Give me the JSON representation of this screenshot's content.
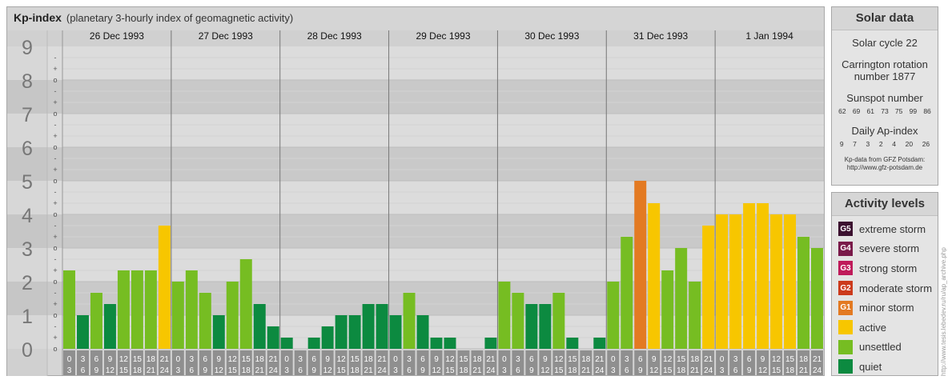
{
  "header": {
    "title": "Kp-index",
    "subtitle": "(planetary 3-hourly index of geomagnetic activity)"
  },
  "chart_data": {
    "type": "bar",
    "title": "Kp-index",
    "subtitle": "(planetary 3-hourly index of geomagnetic activity)",
    "ylim": [
      0,
      9
    ],
    "y_major_labels": [
      "0",
      "1",
      "2",
      "3",
      "4",
      "5",
      "6",
      "7",
      "8",
      "9"
    ],
    "y_minor_labels": [
      "o",
      "+",
      "-"
    ],
    "days": [
      "26 Dec 1993",
      "27 Dec 1993",
      "28 Dec 1993",
      "29 Dec 1993",
      "30 Dec 1993",
      "31 Dec 1993",
      "1 Jan 1994"
    ],
    "interval_start_labels": [
      "0",
      "3",
      "6",
      "9",
      "12",
      "15",
      "18",
      "21"
    ],
    "interval_end_labels": [
      "3",
      "6",
      "9",
      "12",
      "15",
      "18",
      "21",
      "24"
    ],
    "values": [
      [
        2.333,
        1.0,
        1.667,
        1.333,
        2.333,
        2.333,
        2.333,
        3.667
      ],
      [
        2.0,
        2.333,
        1.667,
        1.0,
        2.0,
        2.667,
        1.333,
        0.667
      ],
      [
        0.333,
        0.0,
        0.333,
        0.667,
        1.0,
        1.0,
        1.333,
        1.333
      ],
      [
        1.0,
        1.667,
        1.0,
        0.333,
        0.333,
        0.0,
        0.0,
        0.333
      ],
      [
        2.0,
        1.667,
        1.333,
        1.333,
        1.667,
        0.333,
        0.0,
        0.333
      ],
      [
        2.0,
        3.333,
        5.0,
        4.333,
        2.333,
        3.0,
        2.0,
        3.667
      ],
      [
        4.0,
        4.0,
        4.333,
        4.333,
        4.0,
        4.0,
        3.333,
        3.0
      ]
    ]
  },
  "colors": {
    "quiet": "#0c8a40",
    "unsettled": "#76bd22",
    "active": "#f7c600",
    "minor_storm": "#e37a22",
    "moderate_storm": "#cc3a1c",
    "strong_storm": "#bf1b5a",
    "severe_storm": "#7a1a4a",
    "extreme_storm": "#3c1130"
  },
  "solar_data": {
    "title": "Solar data",
    "solar_cycle": "Solar cycle 22",
    "carrington_line1": "Carrington rotation",
    "carrington_line2": "number 1877",
    "sunspot_label": "Sunspot number",
    "sunspot_values": [
      "62",
      "69",
      "61",
      "73",
      "75",
      "99",
      "86"
    ],
    "ap_label": "Daily Ap-index",
    "ap_values": [
      "9",
      "7",
      "3",
      "2",
      "4",
      "20",
      "26"
    ],
    "credit_line1": "Kp-data from GFZ Potsdam:",
    "credit_line2": "http://www.gfz-potsdam.de"
  },
  "activity_levels": {
    "title": "Activity levels",
    "items": [
      {
        "badge": "G5",
        "label": "extreme storm",
        "color": "#3c1130"
      },
      {
        "badge": "G4",
        "label": "severe storm",
        "color": "#7a1a4a"
      },
      {
        "badge": "G3",
        "label": "strong storm",
        "color": "#bf1b5a"
      },
      {
        "badge": "G2",
        "label": "moderate storm",
        "color": "#cc3a1c"
      },
      {
        "badge": "G1",
        "label": "minor storm",
        "color": "#e37a22"
      },
      {
        "badge": "",
        "label": "active",
        "color": "#f7c600"
      },
      {
        "badge": "",
        "label": "unsettled",
        "color": "#76bd22"
      },
      {
        "badge": "",
        "label": "quiet",
        "color": "#0c8a40"
      }
    ]
  },
  "watermark": "http://www.tesis.lebedev.ru/ru/ap_archive.php"
}
